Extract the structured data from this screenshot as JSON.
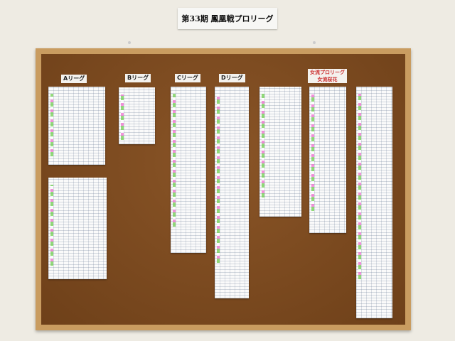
{
  "title": "第33期 鳳凰戦プロリーグ",
  "leagues": [
    {
      "label": "Aリーグ"
    },
    {
      "label": "Bリーグ"
    },
    {
      "label": "Cリーグ"
    },
    {
      "label": "Dリーグ"
    },
    {
      "label": "女流プロリーグ",
      "sublabel": "女流桜花"
    }
  ],
  "colors": {
    "wall": "#eeebe3",
    "frame": "#c99c60",
    "cork": "#7a4a20"
  }
}
